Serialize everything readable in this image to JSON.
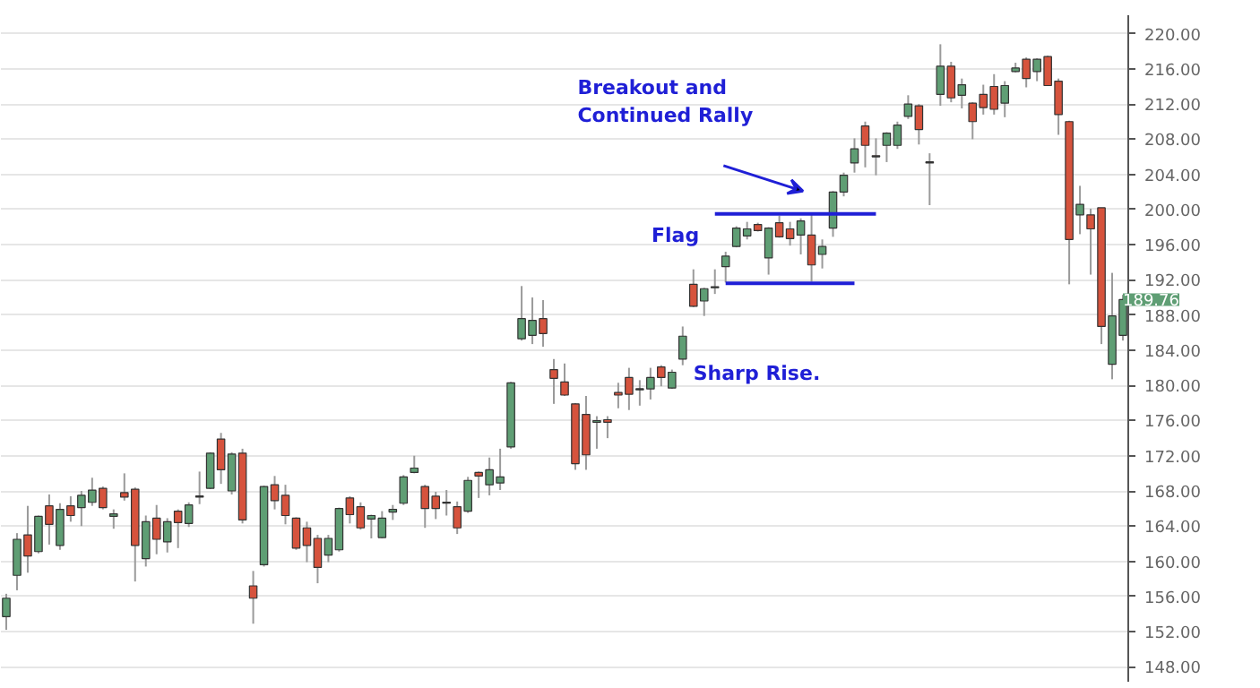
{
  "chart_data": {
    "type": "candlestick",
    "categories": [
      null,
      null,
      null,
      null,
      null,
      null,
      null,
      null,
      null,
      null,
      null,
      null,
      null,
      null,
      null,
      null,
      null,
      null,
      null,
      null,
      null,
      null,
      null,
      null,
      null,
      null,
      null,
      null,
      null,
      null,
      null,
      null,
      null,
      null,
      null,
      null,
      null,
      null,
      null,
      null,
      null,
      null,
      null,
      null,
      null,
      null,
      null,
      null,
      null,
      null,
      null,
      null,
      null,
      null,
      null,
      null,
      null,
      null,
      null,
      null,
      null,
      null,
      null,
      null,
      null,
      null,
      null,
      null,
      null,
      null,
      null,
      null,
      null,
      null,
      null,
      null,
      null,
      null,
      null,
      null,
      null,
      null,
      null,
      null,
      null,
      null,
      null,
      null,
      null,
      null,
      null,
      null,
      null,
      null,
      null,
      null,
      null,
      null,
      null,
      null,
      null,
      null,
      null,
      null,
      null
    ],
    "ohlc": [
      [
        153.7,
        156.3,
        152.2,
        155.8
      ],
      [
        158.4,
        163.2,
        156.7,
        162.5
      ],
      [
        163.0,
        166.3,
        158.7,
        160.6
      ],
      [
        161.1,
        165.2,
        160.9,
        165.1
      ],
      [
        166.3,
        167.6,
        161.9,
        164.2
      ],
      [
        161.8,
        166.6,
        161.3,
        165.9
      ],
      [
        166.3,
        167.4,
        164.5,
        165.2
      ],
      [
        166.1,
        168.0,
        164.0,
        167.5
      ],
      [
        166.7,
        169.5,
        166.3,
        168.1
      ],
      [
        168.3,
        168.5,
        165.9,
        166.1
      ],
      [
        165.1,
        165.9,
        163.7,
        165.4
      ],
      [
        167.8,
        170.0,
        166.9,
        167.3
      ],
      [
        168.2,
        168.4,
        157.7,
        161.8
      ],
      [
        160.3,
        165.2,
        159.4,
        164.5
      ],
      [
        164.9,
        166.4,
        160.8,
        162.5
      ],
      [
        162.2,
        164.9,
        161.0,
        164.5
      ],
      [
        165.7,
        165.9,
        161.5,
        164.4
      ],
      [
        164.3,
        166.7,
        163.9,
        166.4
      ],
      [
        167.4,
        170.2,
        166.5,
        167.3
      ],
      [
        168.3,
        172.4,
        168.2,
        172.3
      ],
      [
        173.9,
        174.6,
        168.8,
        170.4
      ],
      [
        168.0,
        172.4,
        167.6,
        172.2
      ],
      [
        172.3,
        172.8,
        164.3,
        164.7
      ],
      [
        157.2,
        158.9,
        152.9,
        155.8
      ],
      [
        159.6,
        168.6,
        159.4,
        168.5
      ],
      [
        168.7,
        169.7,
        165.9,
        166.9
      ],
      [
        167.5,
        168.7,
        164.2,
        165.2
      ],
      [
        164.9,
        165.0,
        161.3,
        161.5
      ],
      [
        163.8,
        164.5,
        159.9,
        161.8
      ],
      [
        162.6,
        163.0,
        157.5,
        159.3
      ],
      [
        160.7,
        163.0,
        159.9,
        162.6
      ],
      [
        161.3,
        166.1,
        161.1,
        166.0
      ],
      [
        167.2,
        167.4,
        164.3,
        165.3
      ],
      [
        166.2,
        166.7,
        163.6,
        163.8
      ],
      [
        164.8,
        165.3,
        162.6,
        165.2
      ],
      [
        162.7,
        165.7,
        162.6,
        164.9
      ],
      [
        165.6,
        166.4,
        164.7,
        165.9
      ],
      [
        166.6,
        169.8,
        166.4,
        169.6
      ],
      [
        170.1,
        172.0,
        170.0,
        170.6
      ],
      [
        168.5,
        168.7,
        163.8,
        166.0
      ],
      [
        167.4,
        167.9,
        164.8,
        166.0
      ],
      [
        166.7,
        168.1,
        165.2,
        166.6
      ],
      [
        166.2,
        166.8,
        163.1,
        163.8
      ],
      [
        165.7,
        169.6,
        165.5,
        169.2
      ],
      [
        170.1,
        170.2,
        167.2,
        169.7
      ],
      [
        168.7,
        171.8,
        167.5,
        170.4
      ],
      [
        168.9,
        172.8,
        168.1,
        169.6
      ],
      [
        173.0,
        180.4,
        172.8,
        180.3
      ],
      [
        185.3,
        191.3,
        185.1,
        187.6
      ],
      [
        185.7,
        190.0,
        184.7,
        187.4
      ],
      [
        187.6,
        189.7,
        184.4,
        185.9
      ],
      [
        181.8,
        183.0,
        177.9,
        180.8
      ],
      [
        180.4,
        182.5,
        178.8,
        178.9
      ],
      [
        177.9,
        178.0,
        170.4,
        171.1
      ],
      [
        176.7,
        178.8,
        170.4,
        172.1
      ],
      [
        175.8,
        176.5,
        172.8,
        176.0
      ],
      [
        176.1,
        176.5,
        174.0,
        175.8
      ],
      [
        179.2,
        180.3,
        177.4,
        178.9
      ],
      [
        180.9,
        182.0,
        177.2,
        179.0
      ],
      [
        179.5,
        180.6,
        177.7,
        179.6
      ],
      [
        179.6,
        182.0,
        178.4,
        180.9
      ],
      [
        182.1,
        182.3,
        179.9,
        180.9
      ],
      [
        179.7,
        181.8,
        179.6,
        181.5
      ],
      [
        183.0,
        186.7,
        182.3,
        185.6
      ],
      [
        191.5,
        193.2,
        188.9,
        189.0
      ],
      [
        189.6,
        191.1,
        187.9,
        191.0
      ],
      [
        191.1,
        193.2,
        190.4,
        191.2
      ],
      [
        193.5,
        195.2,
        191.7,
        194.7
      ],
      [
        195.8,
        198.1,
        195.7,
        197.9
      ],
      [
        197.0,
        198.6,
        196.6,
        197.8
      ],
      [
        198.3,
        198.5,
        197.5,
        197.6
      ],
      [
        194.5,
        198.0,
        192.6,
        197.9
      ],
      [
        198.5,
        199.3,
        196.8,
        196.9
      ],
      [
        197.8,
        198.6,
        195.9,
        196.7
      ],
      [
        197.1,
        199.0,
        194.9,
        198.7
      ],
      [
        197.1,
        199.4,
        191.8,
        193.7
      ],
      [
        194.9,
        196.6,
        193.3,
        195.8
      ],
      [
        197.9,
        202.1,
        196.9,
        202.0
      ],
      [
        202.0,
        204.2,
        201.5,
        203.9
      ],
      [
        205.3,
        208.1,
        204.2,
        206.9
      ],
      [
        209.5,
        210.0,
        204.8,
        207.3
      ],
      [
        206.1,
        208.1,
        203.9,
        206.0
      ],
      [
        207.3,
        208.8,
        205.4,
        208.7
      ],
      [
        207.3,
        210.0,
        206.9,
        209.6
      ],
      [
        210.6,
        213.0,
        210.3,
        212.0
      ],
      [
        211.8,
        212.0,
        207.4,
        209.1
      ],
      [
        205.4,
        206.4,
        200.5,
        205.3
      ],
      [
        213.1,
        218.8,
        211.8,
        216.3
      ],
      [
        216.3,
        216.8,
        212.2,
        212.7
      ],
      [
        213.0,
        214.9,
        211.5,
        214.2
      ],
      [
        212.1,
        212.2,
        208.0,
        210.0
      ],
      [
        213.1,
        214.2,
        210.8,
        211.6
      ],
      [
        214.0,
        215.4,
        210.8,
        211.4
      ],
      [
        212.1,
        214.6,
        210.5,
        214.1
      ],
      [
        215.7,
        216.7,
        215.6,
        216.1
      ],
      [
        217.1,
        217.3,
        213.9,
        214.9
      ],
      [
        215.7,
        217.2,
        214.6,
        217.1
      ],
      [
        217.4,
        217.5,
        214.1,
        214.1
      ],
      [
        214.6,
        214.9,
        208.5,
        210.8
      ],
      [
        210.0,
        210.1,
        191.5,
        196.6
      ],
      [
        199.4,
        202.7,
        197.2,
        200.6
      ],
      [
        199.4,
        200.1,
        192.6,
        197.8
      ],
      [
        200.2,
        200.2,
        184.7,
        186.7
      ],
      [
        182.4,
        192.8,
        180.7,
        187.9
      ],
      [
        185.7,
        190.3,
        185.1,
        189.76
      ]
    ],
    "colors": [
      "#5f9e74",
      "#5f9e74",
      "#d6533d",
      "#5f9e74",
      "#d6533d",
      "#5f9e74",
      "#d6533d",
      "#5f9e74",
      "#5f9e74",
      "#d6533d",
      "#5f9e74",
      "#d6533d",
      "#d6533d",
      "#5f9e74",
      "#d6533d",
      "#5f9e74",
      "#d6533d",
      "#5f9e74",
      "#d6533d",
      "#5f9e74",
      "#d6533d",
      "#5f9e74",
      "#d6533d",
      "#d6533d",
      "#5f9e74",
      "#d6533d",
      "#d6533d",
      "#d6533d",
      "#d6533d",
      "#d6533d",
      "#5f9e74",
      "#5f9e74",
      "#d6533d",
      "#d6533d",
      "#5f9e74",
      "#5f9e74",
      "#5f9e74",
      "#5f9e74",
      "#5f9e74",
      "#d6533d",
      "#d6533d",
      "#d6533d",
      "#d6533d",
      "#5f9e74",
      "#d6533d",
      "#5f9e74",
      "#5f9e74",
      "#5f9e74",
      "#5f9e74",
      "#5f9e74",
      "#d6533d",
      "#d6533d",
      "#d6533d",
      "#d6533d",
      "#d6533d",
      "#5f9e74",
      "#d6533d",
      "#d6533d",
      "#d6533d",
      "#5f9e74",
      "#5f9e74",
      "#d6533d",
      "#5f9e74",
      "#5f9e74",
      "#d6533d",
      "#5f9e74",
      "#5f9e74",
      "#5f9e74",
      "#5f9e74",
      "#5f9e74",
      "#d6533d",
      "#5f9e74",
      "#d6533d",
      "#d6533d",
      "#5f9e74",
      "#d6533d",
      "#5f9e74",
      "#5f9e74",
      "#5f9e74",
      "#5f9e74",
      "#d6533d",
      "#d6533d",
      "#5f9e74",
      "#5f9e74",
      "#5f9e74",
      "#d6533d",
      "#d6533d",
      "#5f9e74",
      "#d6533d",
      "#5f9e74",
      "#d6533d",
      "#d6533d",
      "#d6533d",
      "#5f9e74",
      "#5f9e74",
      "#d6533d",
      "#5f9e74",
      "#d6533d",
      "#d6533d",
      "#d6533d",
      "#5f9e74",
      "#d6533d",
      "#d6533d",
      "#5f9e74",
      "#5f9e74"
    ],
    "series": [
      {
        "type": "line",
        "color": "#1f1fd6",
        "values": [
          null,
          null,
          null,
          null,
          null,
          null,
          null,
          null,
          null,
          null,
          null,
          null,
          null,
          null,
          null,
          null,
          null,
          null,
          null,
          null,
          null,
          null,
          null,
          null,
          null,
          null,
          null,
          null,
          null,
          null,
          null,
          null,
          null,
          null,
          null,
          null,
          null,
          null,
          null,
          null,
          null,
          null,
          null,
          null,
          null,
          null,
          null,
          null,
          null,
          null,
          null,
          null,
          null,
          null,
          null,
          null,
          null,
          null,
          null,
          null,
          null,
          null,
          null,
          null,
          null,
          null,
          199.5,
          199.5,
          199.5,
          199.5,
          199.5,
          199.5,
          199.5,
          199.5,
          199.5,
          199.5,
          199.5,
          199.5,
          199.5,
          199.5,
          199.5,
          199.5,
          null,
          null,
          null,
          null,
          null,
          null,
          null,
          null,
          null,
          null,
          null,
          null,
          null,
          null,
          null,
          null,
          null,
          null,
          null,
          null,
          null,
          null,
          null
        ]
      },
      {
        "type": "line",
        "color": "#1f1fd6",
        "values": [
          null,
          null,
          null,
          null,
          null,
          null,
          null,
          null,
          null,
          null,
          null,
          null,
          null,
          null,
          null,
          null,
          null,
          null,
          null,
          null,
          null,
          null,
          null,
          null,
          null,
          null,
          null,
          null,
          null,
          null,
          null,
          null,
          null,
          null,
          null,
          null,
          null,
          null,
          null,
          null,
          null,
          null,
          null,
          null,
          null,
          null,
          null,
          null,
          null,
          null,
          null,
          null,
          null,
          null,
          null,
          null,
          null,
          null,
          null,
          null,
          null,
          null,
          null,
          null,
          null,
          null,
          null,
          191.6,
          191.6,
          191.6,
          191.6,
          191.6,
          191.6,
          191.6,
          191.6,
          191.6,
          191.6,
          191.6,
          191.6,
          191.6,
          null,
          null,
          null,
          null,
          null,
          null,
          null,
          null,
          null,
          null,
          null,
          null,
          null,
          null,
          null,
          null,
          null,
          null,
          null,
          null,
          null,
          null,
          null,
          null,
          null
        ]
      }
    ],
    "ylim": [
      146.3,
      222.1
    ],
    "yticks": [
      {
        "value": 148,
        "label": "148.00"
      },
      {
        "value": 152,
        "label": "152.00"
      },
      {
        "value": 156,
        "label": "156.00"
      },
      {
        "value": 160,
        "label": "160.00"
      },
      {
        "value": 164,
        "label": "164.00"
      },
      {
        "value": 168,
        "label": "168.00"
      },
      {
        "value": 172,
        "label": "172.00"
      },
      {
        "value": 176,
        "label": "176.00"
      },
      {
        "value": 180,
        "label": "180.00"
      },
      {
        "value": 184,
        "label": "184.00"
      },
      {
        "value": 188,
        "label": "188.00"
      },
      {
        "value": 192,
        "label": "192.00"
      },
      {
        "value": 196,
        "label": "196.00"
      },
      {
        "value": 200,
        "label": "200.00"
      },
      {
        "value": 204,
        "label": "204.00"
      },
      {
        "value": 208,
        "label": "208.00"
      },
      {
        "value": 212,
        "label": "212.00"
      },
      {
        "value": 216,
        "label": "216.00"
      },
      {
        "value": 220,
        "label": "220.00"
      }
    ],
    "grid": "y",
    "tick_labels": "y",
    "annotations": [
      "Breakout and\nContinued Rally",
      "Flag",
      "Sharp Rise.",
      "189.76"
    ]
  }
}
